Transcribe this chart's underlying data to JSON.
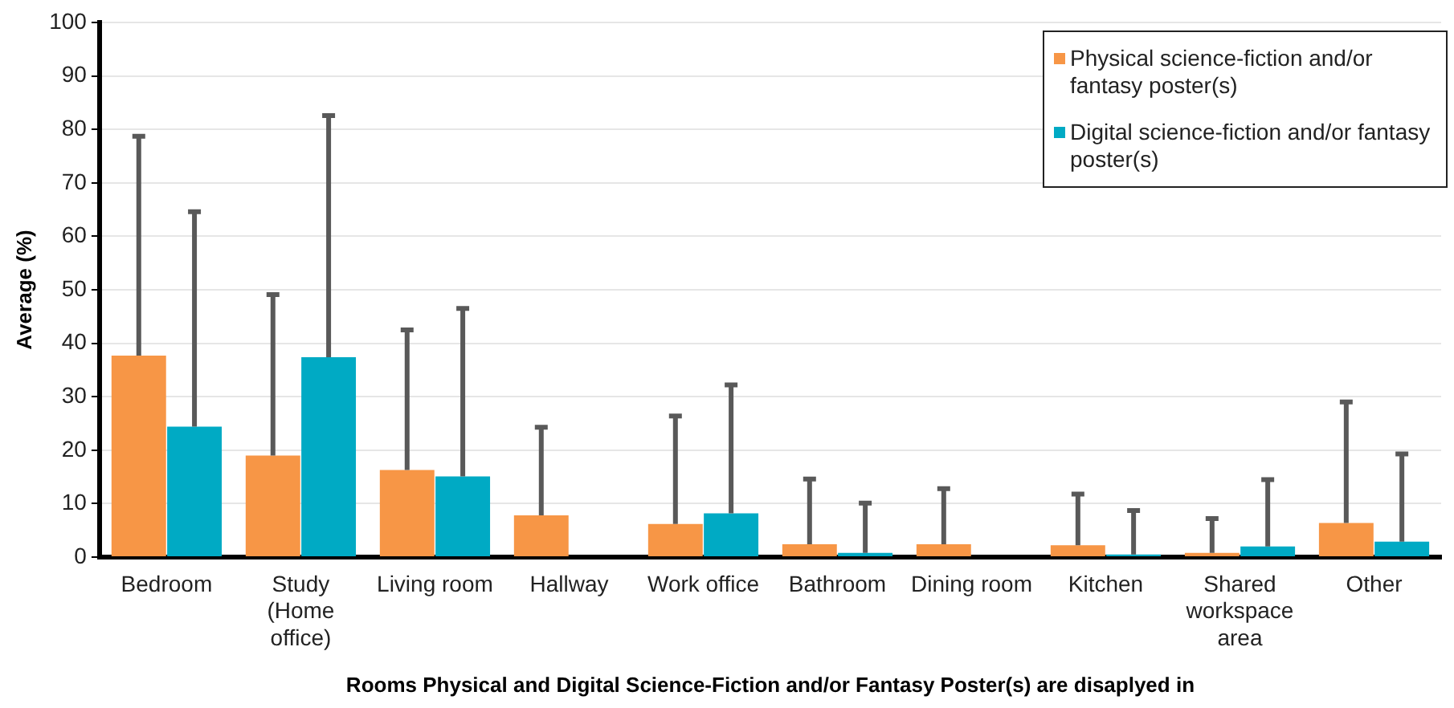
{
  "chart_data": {
    "type": "bar",
    "xlabel": "Rooms Physical and Digital Science-Fiction and/or Fantasy Poster(s) are disaplyed in",
    "ylabel": "Average (%)",
    "categories": [
      "Bedroom",
      "Study (Home office)",
      "Living room",
      "Hallway",
      "Work office",
      "Bathroom",
      "Dining room",
      "Kitchen",
      "Shared workspace area",
      "Other"
    ],
    "series": [
      {
        "name": "Physical science-fiction and/or fantasy poster(s)",
        "color": "#f79646",
        "values": [
          37.7,
          19.0,
          16.3,
          7.8,
          6.2,
          2.4,
          2.4,
          2.2,
          0.8,
          6.4
        ],
        "errors": [
          [
            37.7,
            78.7
          ],
          [
            19.0,
            49.1
          ],
          [
            16.3,
            42.5
          ],
          [
            7.8,
            24.3
          ],
          [
            6.2,
            26.4
          ],
          [
            2.4,
            14.6
          ],
          [
            2.4,
            12.8
          ],
          [
            2.2,
            11.8
          ],
          [
            0.8,
            7.2
          ],
          [
            6.4,
            29.0
          ]
        ]
      },
      {
        "name": "Digital science-fiction and/or fantasy poster(s)",
        "color": "#00aac4",
        "values": [
          24.4,
          37.4,
          15.1,
          0,
          8.2,
          0.8,
          0,
          0.5,
          2.0,
          2.9
        ],
        "errors": [
          [
            24.4,
            64.6
          ],
          [
            37.4,
            82.6
          ],
          [
            15.1,
            46.5
          ],
          null,
          [
            8.2,
            32.2
          ],
          [
            0.8,
            10.1
          ],
          null,
          [
            0.5,
            8.7
          ],
          [
            2.0,
            14.5
          ],
          [
            2.9,
            19.3
          ]
        ]
      }
    ],
    "ylim": [
      0,
      100
    ],
    "yticks": [
      0,
      10,
      20,
      30,
      40,
      50,
      60,
      70,
      80,
      90,
      100
    ],
    "grid": "y",
    "legend": "top right"
  }
}
